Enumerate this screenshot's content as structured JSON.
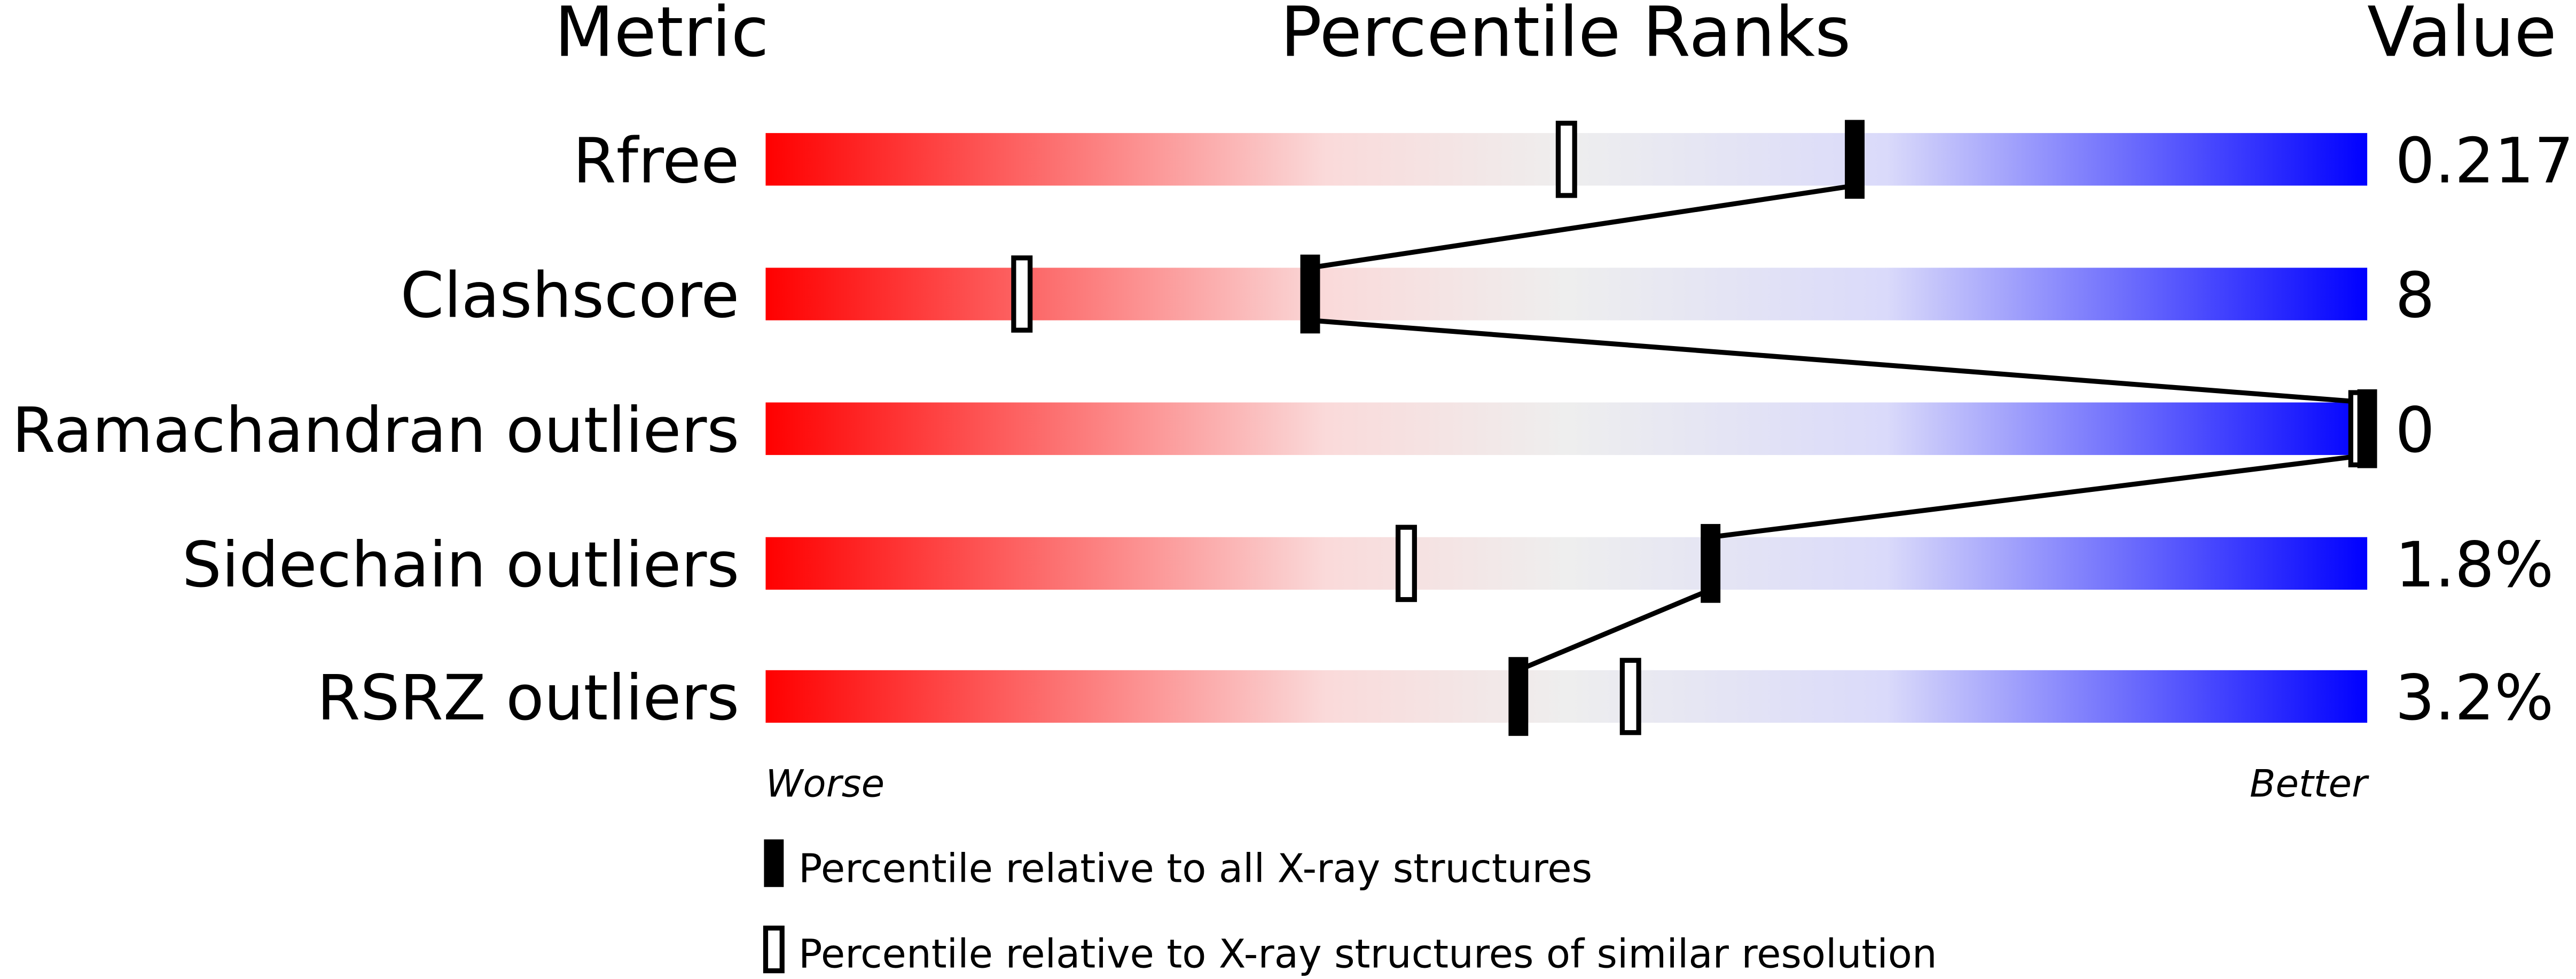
{
  "chart_data": {
    "type": "bar",
    "headers": {
      "metric": "Metric",
      "percentile": "Percentile Ranks",
      "value": "Value"
    },
    "xlim": [
      0,
      100
    ],
    "scale_labels": {
      "left": "Worse",
      "right": "Better"
    },
    "colors": {
      "worse": "#ff0000",
      "mid": "#f0f0f0",
      "better": "#0000ff",
      "marker": "#000000"
    },
    "metrics": [
      {
        "name": "Rfree",
        "value": "0.217",
        "percentile_all": 68,
        "percentile_similar": 50
      },
      {
        "name": "Clashscore",
        "value": "8",
        "percentile_all": 34,
        "percentile_similar": 16
      },
      {
        "name": "Ramachandran outliers",
        "value": "0",
        "percentile_all": 100,
        "percentile_similar": 100
      },
      {
        "name": "Sidechain outliers",
        "value": "1.8%",
        "percentile_all": 59,
        "percentile_similar": 40
      },
      {
        "name": "RSRZ outliers",
        "value": "3.2%",
        "percentile_all": 47,
        "percentile_similar": 54
      }
    ],
    "legend": {
      "all": "Percentile relative to all X-ray structures",
      "similar": "Percentile relative to X-ray structures of similar resolution"
    }
  }
}
